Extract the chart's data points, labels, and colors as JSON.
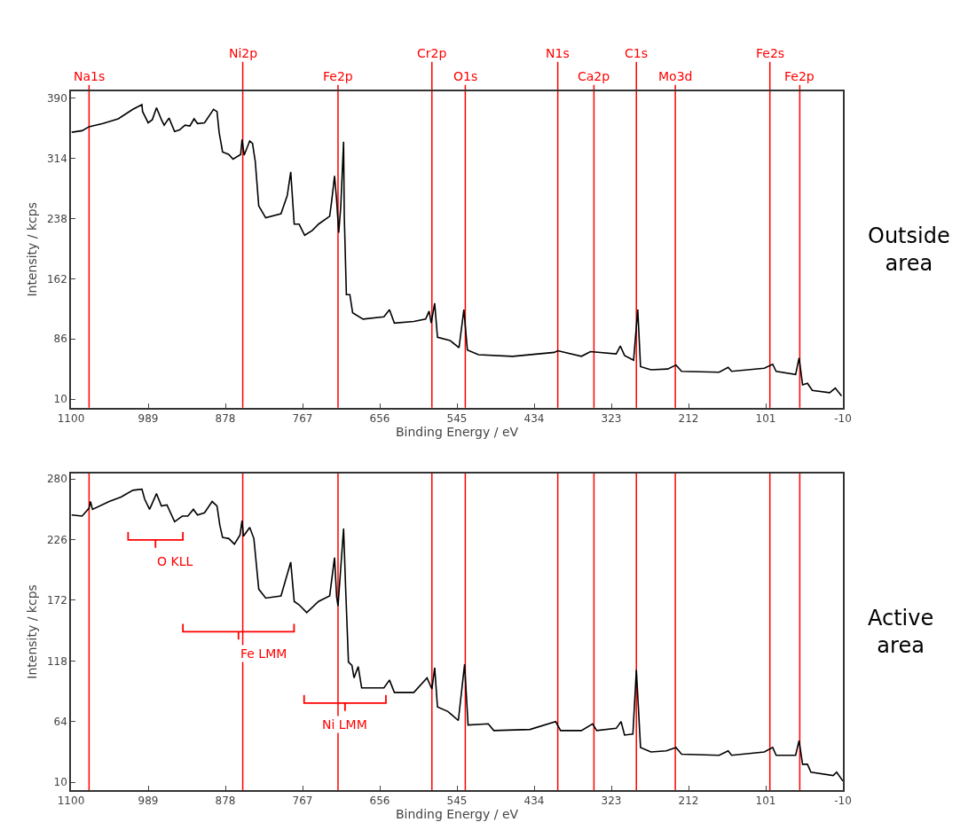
{
  "chart_data": [
    {
      "type": "line",
      "xlabel": "Binding Energy / eV",
      "ylabel": "Intensity / kcps",
      "annotations": [
        "Outside area"
      ],
      "xlim": [
        1100,
        -10
      ],
      "ylim": [
        -1,
        399
      ],
      "xticks": [
        1100,
        989,
        878,
        767,
        656,
        545,
        434,
        323,
        212,
        101,
        -10
      ],
      "yticks": [
        10,
        86,
        162,
        238,
        314,
        390
      ],
      "x": [
        1099,
        1084,
        1074,
        1054,
        1032,
        1011,
        998,
        997,
        989,
        983,
        977,
        970,
        966,
        959,
        951,
        944,
        936,
        929,
        923,
        918,
        908,
        895,
        890,
        887,
        882,
        873,
        867,
        856,
        854,
        851,
        843,
        839,
        835,
        830,
        820,
        798,
        789,
        784,
        779,
        772,
        764,
        753,
        744,
        728,
        725,
        721,
        718,
        715,
        712,
        708,
        707,
        704,
        699,
        695,
        680,
        650,
        642,
        635,
        607,
        590,
        585,
        582,
        577,
        573,
        555,
        542,
        535,
        530,
        514,
        465,
        405,
        400,
        366,
        353,
        316,
        310,
        304,
        291,
        285,
        281,
        266,
        242,
        230,
        222,
        168,
        155,
        150,
        103,
        91,
        86,
        58,
        53,
        48,
        41,
        34,
        9,
        1,
        -8
      ],
      "series": [
        {
          "color": "#000000",
          "values": [
            347,
            349,
            354,
            358,
            364,
            376,
            382,
            373,
            359,
            363,
            378,
            363,
            356,
            365,
            348,
            350,
            356,
            355,
            364,
            358,
            359,
            376,
            373,
            347,
            322,
            319,
            313,
            319,
            338,
            318,
            336,
            333,
            310,
            254,
            239,
            244,
            267,
            297,
            231,
            231,
            217,
            223,
            231,
            241,
            261,
            292,
            261,
            220,
            254,
            335,
            241,
            142,
            142,
            119,
            111,
            114,
            123,
            106,
            108,
            111,
            121,
            106,
            131,
            88,
            84,
            75,
            123,
            72,
            66,
            64,
            69,
            71,
            64,
            70,
            67,
            77,
            65,
            59,
            123,
            51,
            47,
            48,
            53,
            45,
            44,
            50,
            45,
            49,
            54,
            45,
            41,
            62,
            28,
            30,
            21,
            18,
            24,
            14
          ]
        }
      ],
      "ref_lines": [
        {
          "axis": "x",
          "value": 1074,
          "label": "Na1s",
          "color": "#ff0000"
        },
        {
          "axis": "x",
          "value": 853,
          "label": "Ni2p",
          "color": "#ff0000"
        },
        {
          "axis": "x",
          "value": 716,
          "label": "Fe2p",
          "color": "#ff0000"
        },
        {
          "axis": "x",
          "value": 581,
          "label": "Cr2p",
          "color": "#ff0000"
        },
        {
          "axis": "x",
          "value": 533,
          "label": "O1s",
          "color": "#ff0000"
        },
        {
          "axis": "x",
          "value": 400,
          "label": "N1s",
          "color": "#ff0000"
        },
        {
          "axis": "x",
          "value": 348,
          "label": "Ca2p",
          "color": "#ff0000"
        },
        {
          "axis": "x",
          "value": 287,
          "label": "C1s",
          "color": "#ff0000"
        },
        {
          "axis": "x",
          "value": 231,
          "label": "Mo3d",
          "color": "#ff0000"
        },
        {
          "axis": "x",
          "value": 95,
          "label": "Fe2s",
          "color": "#ff0000"
        },
        {
          "axis": "x",
          "value": 52,
          "label": "Fe2p",
          "color": "#ff0000"
        }
      ]
    },
    {
      "type": "line",
      "xlabel": "Binding Energy / eV",
      "ylabel": "Intensity / kcps",
      "annotations": [
        "Active area",
        "O KLL",
        "Fe LMM",
        "Ni LMM"
      ],
      "xlim": [
        1100,
        -10
      ],
      "ylim": [
        3,
        285
      ],
      "xticks": [
        1100,
        989,
        878,
        767,
        656,
        545,
        434,
        323,
        212,
        101,
        -10
      ],
      "yticks": [
        10,
        64,
        118,
        172,
        226,
        280
      ],
      "x": [
        1099,
        1084,
        1074,
        1072,
        1069,
        1045,
        1028,
        1011,
        998,
        994,
        987,
        977,
        970,
        962,
        951,
        940,
        932,
        924,
        918,
        908,
        897,
        890,
        886,
        882,
        873,
        865,
        857,
        854,
        852,
        843,
        837,
        830,
        820,
        798,
        784,
        779,
        772,
        761,
        744,
        728,
        721,
        718,
        716,
        708,
        705,
        701,
        696,
        693,
        687,
        682,
        650,
        642,
        635,
        607,
        588,
        581,
        577,
        573,
        558,
        543,
        534,
        529,
        500,
        492,
        440,
        403,
        396,
        366,
        350,
        344,
        316,
        309,
        304,
        292,
        287,
        281,
        266,
        244,
        230,
        222,
        168,
        155,
        150,
        103,
        91,
        86,
        58,
        53,
        48,
        41,
        36,
        4,
        -1,
        -10
      ],
      "series": [
        {
          "color": "#000000",
          "values": [
            248,
            247,
            254,
            260,
            253,
            260,
            264,
            270,
            271,
            262,
            253,
            267,
            256,
            257,
            242,
            247,
            247,
            253,
            248,
            250,
            260,
            256,
            239,
            228,
            227,
            222,
            230,
            243,
            229,
            237,
            227,
            182,
            174,
            176,
            206,
            171,
            168,
            161,
            171,
            176,
            210,
            175,
            167,
            236,
            182,
            117,
            114,
            103,
            113,
            94,
            94,
            101,
            90,
            90,
            103,
            93,
            112,
            77,
            73,
            65,
            115,
            61,
            62,
            56,
            57,
            64,
            56,
            56,
            62,
            56,
            58,
            64,
            52,
            53,
            110,
            41,
            37,
            38,
            41,
            35,
            34,
            38,
            34,
            37,
            41,
            34,
            34,
            47,
            26,
            26,
            19,
            16,
            19,
            11
          ]
        }
      ],
      "ref_lines": [
        {
          "axis": "x",
          "value": 1074,
          "color": "#ff0000"
        },
        {
          "axis": "x",
          "value": 853,
          "color": "#ff0000"
        },
        {
          "axis": "x",
          "value": 716,
          "color": "#ff0000"
        },
        {
          "axis": "x",
          "value": 581,
          "color": "#ff0000"
        },
        {
          "axis": "x",
          "value": 533,
          "color": "#ff0000"
        },
        {
          "axis": "x",
          "value": 400,
          "color": "#ff0000"
        },
        {
          "axis": "x",
          "value": 348,
          "color": "#ff0000"
        },
        {
          "axis": "x",
          "value": 287,
          "color": "#ff0000"
        },
        {
          "axis": "x",
          "value": 231,
          "color": "#ff0000"
        },
        {
          "axis": "x",
          "value": 95,
          "color": "#ff0000"
        },
        {
          "axis": "x",
          "value": 52,
          "color": "#ff0000"
        }
      ]
    }
  ]
}
